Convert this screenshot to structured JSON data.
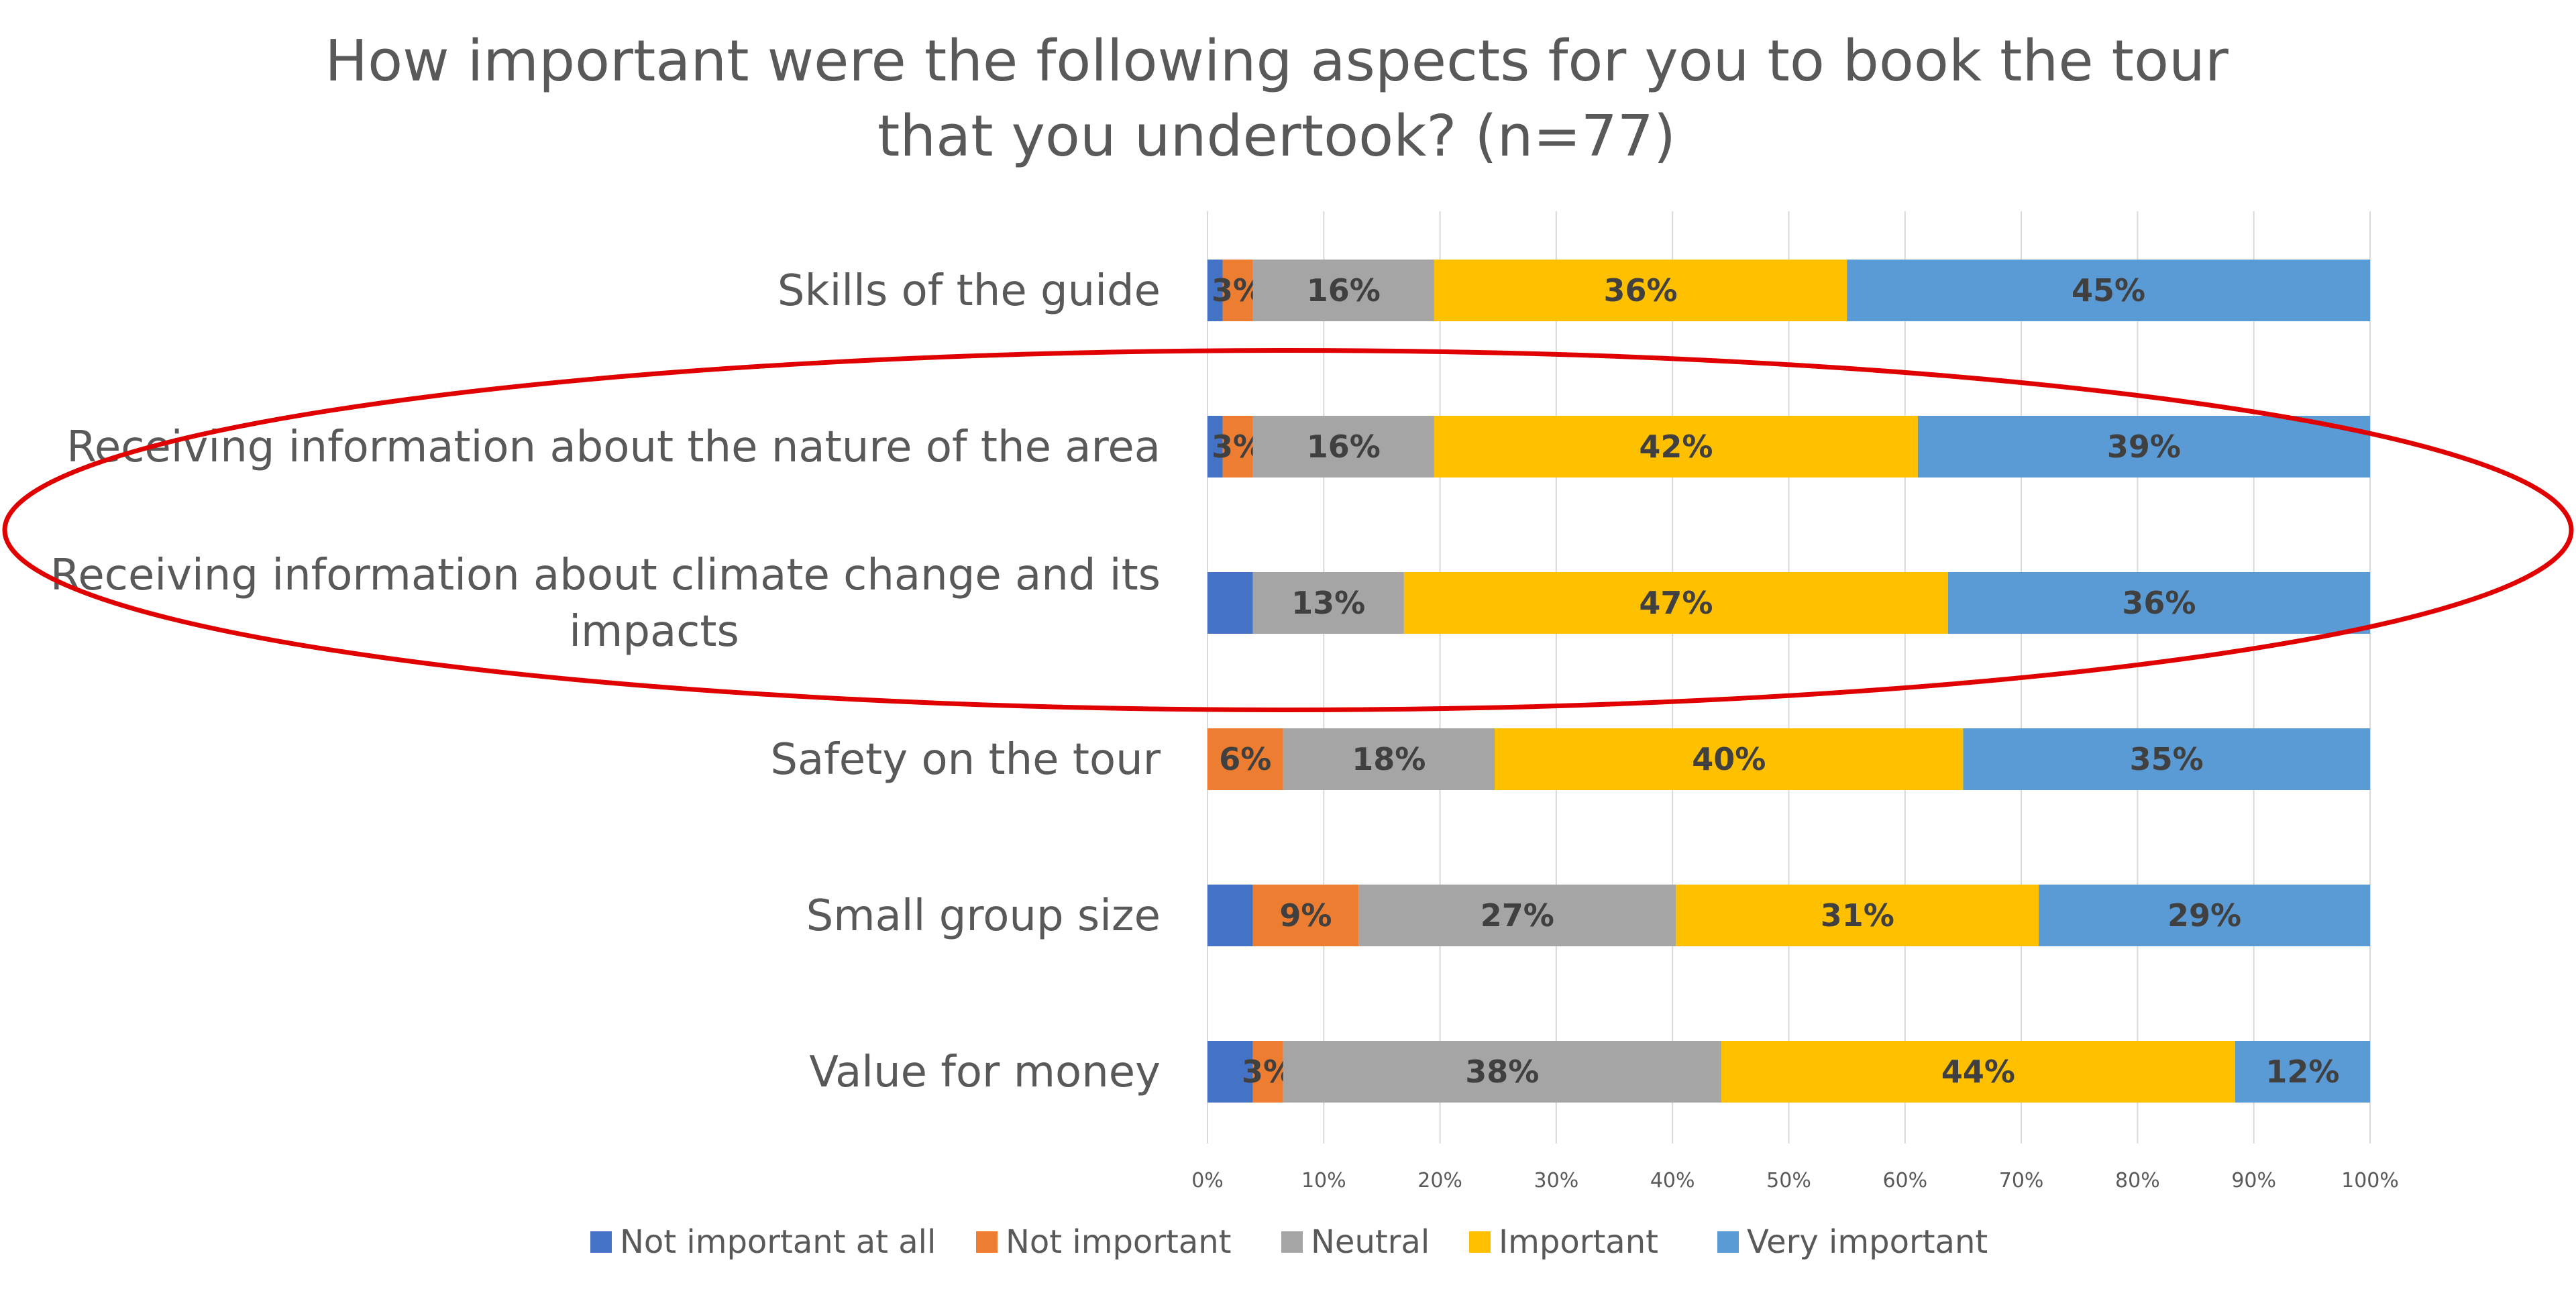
{
  "chart_data": {
    "type": "bar",
    "orientation": "horizontal",
    "stacked": "percent",
    "title_lines": [
      "How important were the following aspects for you to book the tour",
      "that you undertook? (n=77)"
    ],
    "categories": [
      [
        "Skills of the guide"
      ],
      [
        "Receiving information about the nature of the area"
      ],
      [
        "Receiving information about climate change and its",
        "impacts"
      ],
      [
        "Safety on the tour"
      ],
      [
        "Small group size"
      ],
      [
        "Value for money"
      ]
    ],
    "series": [
      {
        "name": "Not important at all",
        "color": "#4472C4",
        "values": [
          1.3,
          1.3,
          3.9,
          0,
          3.9,
          3.9
        ],
        "labels": [
          "",
          "",
          "",
          "",
          "",
          ""
        ]
      },
      {
        "name": "Not important",
        "color": "#ED7D31",
        "values": [
          2.6,
          2.6,
          0,
          6.5,
          9.1,
          2.6
        ],
        "labels": [
          "3%",
          "3%",
          "",
          "6%",
          "9%",
          "3%"
        ]
      },
      {
        "name": "Neutral",
        "color": "#A5A5A5",
        "values": [
          15.6,
          15.6,
          13.0,
          18.2,
          27.3,
          37.7
        ],
        "labels": [
          "16%",
          "16%",
          "13%",
          "18%",
          "27%",
          "38%"
        ]
      },
      {
        "name": "Important",
        "color": "#FFC000",
        "values": [
          35.5,
          41.6,
          46.8,
          40.3,
          31.2,
          44.2
        ],
        "labels": [
          "36%",
          "42%",
          "47%",
          "40%",
          "31%",
          "44%"
        ]
      },
      {
        "name": "Very important",
        "color": "#5B9BD5",
        "values": [
          45.0,
          38.9,
          36.3,
          35.0,
          28.5,
          11.6
        ],
        "labels": [
          "45%",
          "39%",
          "36%",
          "35%",
          "29%",
          "12%"
        ]
      }
    ],
    "x_ticks": [
      "0%",
      "10%",
      "20%",
      "30%",
      "40%",
      "50%",
      "60%",
      "70%",
      "80%",
      "90%",
      "100%"
    ],
    "xlim": [
      0,
      100
    ],
    "grid": true,
    "legend_position": "bottom",
    "annotation": {
      "shape": "ellipse",
      "color": "#E00000",
      "highlights": [
        1,
        2
      ]
    }
  }
}
